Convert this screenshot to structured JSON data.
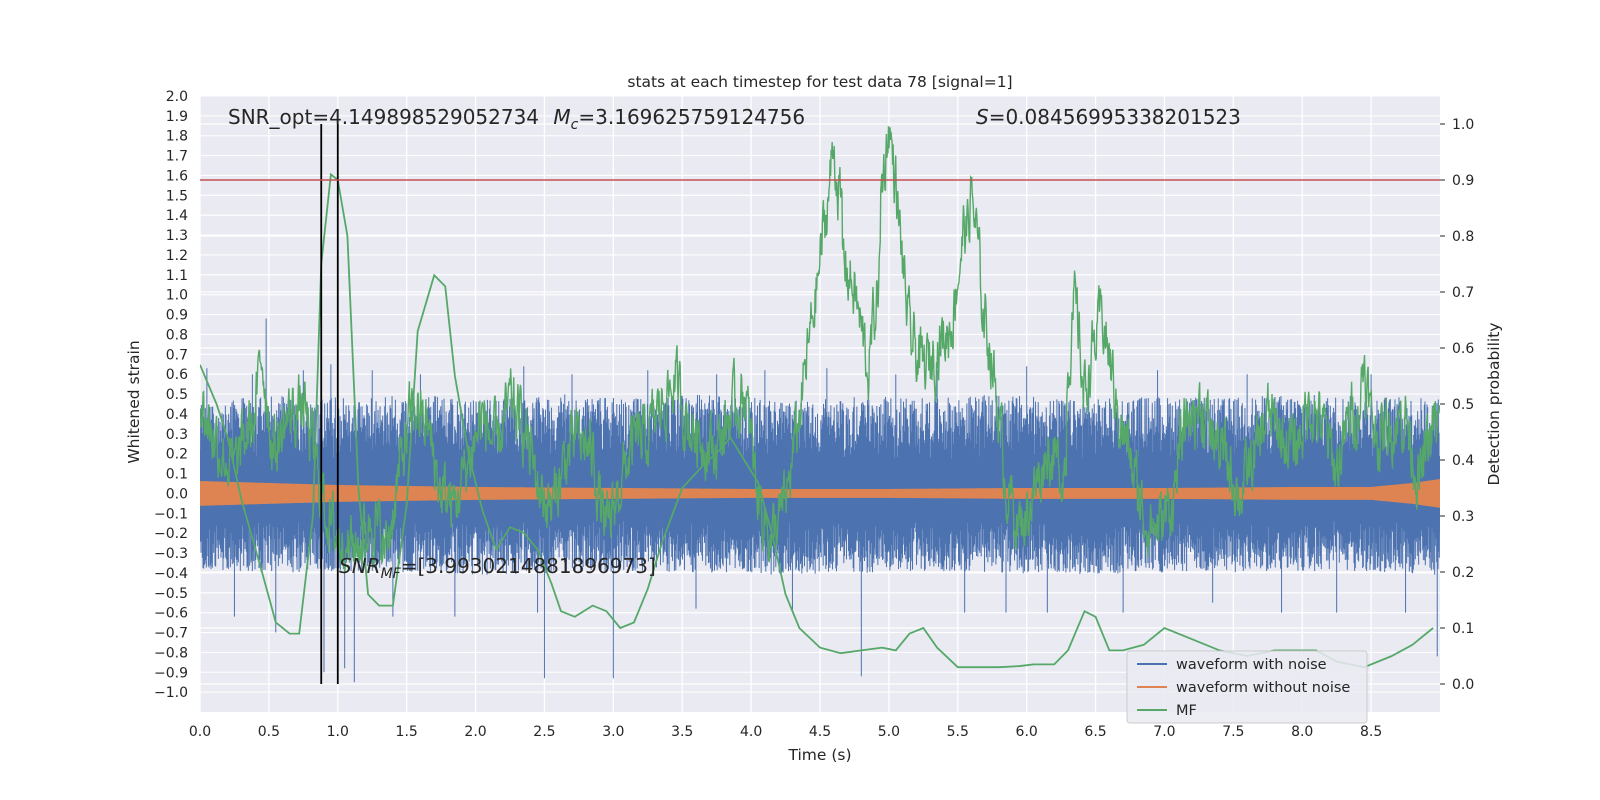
{
  "chart_data": {
    "type": "line",
    "title": "stats at each timestep for test data 78 [signal=1]",
    "xlabel": "Time (s)",
    "ylabel_left": "Whitened strain",
    "ylabel_right": "Detection probability",
    "xlim": [
      0,
      9
    ],
    "xticks": [
      0.0,
      0.5,
      1.0,
      1.5,
      2.0,
      2.5,
      3.0,
      3.5,
      4.0,
      4.5,
      5.0,
      5.5,
      6.0,
      6.5,
      7.0,
      7.5,
      8.0,
      8.5
    ],
    "xtick_labels": [
      "0.0",
      "0.5",
      "1.0",
      "1.5",
      "2.0",
      "2.5",
      "3.0",
      "3.5",
      "4.0",
      "4.5",
      "5.0",
      "5.5",
      "6.0",
      "6.5",
      "7.0",
      "7.5",
      "8.0",
      "8.5"
    ],
    "ylim_left": [
      -1.1,
      2.0
    ],
    "yticks_left": [
      -1.0,
      -0.9,
      -0.8,
      -0.7,
      -0.6,
      -0.5,
      -0.4,
      -0.3,
      -0.2,
      -0.1,
      0.0,
      0.1,
      0.2,
      0.3,
      0.4,
      0.5,
      0.6,
      0.7,
      0.8,
      0.9,
      1.0,
      1.1,
      1.2,
      1.3,
      1.4,
      1.5,
      1.6,
      1.7,
      1.8,
      1.9,
      2.0
    ],
    "ytick_labels_left": [
      "−1.0",
      "−0.9",
      "−0.8",
      "−0.7",
      "−0.6",
      "−0.5",
      "−0.4",
      "−0.3",
      "−0.2",
      "−0.1",
      "0.0",
      "0.1",
      "0.2",
      "0.3",
      "0.4",
      "0.5",
      "0.6",
      "0.7",
      "0.8",
      "0.9",
      "1.0",
      "1.1",
      "1.2",
      "1.3",
      "1.4",
      "1.5",
      "1.6",
      "1.7",
      "1.8",
      "1.9",
      "2.0"
    ],
    "ylim_right": [
      -0.05,
      1.05
    ],
    "yticks_right": [
      0.0,
      0.1,
      0.2,
      0.3,
      0.4,
      0.5,
      0.6,
      0.7,
      0.8,
      0.9,
      1.0
    ],
    "ytick_labels_right": [
      "0.0",
      "0.1",
      "0.2",
      "0.3",
      "0.4",
      "0.5",
      "0.6",
      "0.7",
      "0.8",
      "0.9",
      "1.0"
    ],
    "grid": true,
    "legend_position": "lower-right",
    "annotations": {
      "snr_opt": "SNR_opt=4.149898529052734",
      "mc_symbol": "M",
      "mc_sub": "c",
      "mc_value": "=3.169625759124756",
      "s_symbol": "S",
      "s_value": "=0.08456995338201523",
      "snr_mf_symbol": "SNR",
      "snr_mf_sub": "MF",
      "snr_mf_value": "=[3.9930214881896973]"
    },
    "threshold": {
      "value": 0.9,
      "axis": "right",
      "color": "#c44e52"
    },
    "vlines": [
      0.88,
      1.0
    ],
    "series": [
      {
        "name": "waveform with noise",
        "axis": "left",
        "color": "#4c72b0",
        "kind": "noise-band",
        "upper_envelope": [
          0.45,
          0.5,
          0.48,
          0.5,
          0.47,
          0.5,
          0.48,
          0.5,
          0.47,
          0.49,
          0.48,
          0.5,
          0.47,
          0.49,
          0.48,
          0.5,
          0.49,
          0.48
        ],
        "lower_envelope": [
          -0.38,
          -0.4,
          -0.39,
          -0.4,
          -0.41,
          -0.4,
          -0.39,
          -0.4,
          -0.41,
          -0.4,
          -0.39,
          -0.4,
          -0.41,
          -0.4,
          -0.4,
          -0.39,
          -0.4,
          -0.41
        ],
        "spikes": [
          [
            0.05,
            0.63
          ],
          [
            0.25,
            -0.62
          ],
          [
            0.38,
            0.6
          ],
          [
            0.48,
            0.88
          ],
          [
            0.55,
            -0.7
          ],
          [
            0.75,
            0.62
          ],
          [
            0.9,
            -0.9
          ],
          [
            0.95,
            0.65
          ],
          [
            1.05,
            -0.88
          ],
          [
            1.12,
            -0.95
          ],
          [
            1.25,
            0.62
          ],
          [
            1.4,
            -0.62
          ],
          [
            1.6,
            0.6
          ],
          [
            1.85,
            -0.62
          ],
          [
            2.35,
            0.64
          ],
          [
            2.45,
            -0.6
          ],
          [
            2.5,
            -0.93
          ],
          [
            2.7,
            0.6
          ],
          [
            3.0,
            -0.93
          ],
          [
            3.25,
            0.62
          ],
          [
            3.6,
            -0.58
          ],
          [
            3.75,
            0.6
          ],
          [
            4.1,
            0.62
          ],
          [
            4.3,
            -0.6
          ],
          [
            4.55,
            0.63
          ],
          [
            4.8,
            -0.92
          ],
          [
            5.05,
            0.6
          ],
          [
            5.35,
            0.62
          ],
          [
            5.55,
            -0.6
          ],
          [
            5.85,
            -0.6
          ],
          [
            6.0,
            0.64
          ],
          [
            6.15,
            -0.6
          ],
          [
            6.45,
            0.6
          ],
          [
            6.7,
            -0.6
          ],
          [
            6.95,
            0.62
          ],
          [
            7.35,
            -0.55
          ],
          [
            7.6,
            0.6
          ],
          [
            7.85,
            -0.6
          ],
          [
            8.25,
            -0.6
          ],
          [
            8.5,
            0.6
          ],
          [
            8.75,
            -0.6
          ],
          [
            8.98,
            -0.82
          ]
        ]
      },
      {
        "name": "waveform without noise",
        "axis": "left",
        "color": "#dd8452",
        "kind": "band",
        "x": [
          0.0,
          0.5,
          1.0,
          2.0,
          3.0,
          4.0,
          5.0,
          6.0,
          7.0,
          8.0,
          8.5,
          8.8,
          9.0
        ],
        "half_width": [
          0.06,
          0.05,
          0.04,
          0.03,
          0.025,
          0.02,
          0.02,
          0.025,
          0.025,
          0.03,
          0.03,
          0.05,
          0.07
        ]
      },
      {
        "name": "MF",
        "axis": "right",
        "color": "#55a868",
        "kind": "line",
        "x": [
          0.0,
          0.12,
          0.2,
          0.3,
          0.45,
          0.55,
          0.65,
          0.72,
          0.82,
          0.88,
          0.95,
          1.0,
          1.07,
          1.15,
          1.22,
          1.3,
          1.4,
          1.5,
          1.58,
          1.7,
          1.78,
          1.85,
          1.95,
          2.05,
          2.15,
          2.25,
          2.35,
          2.45,
          2.55,
          2.62,
          2.72,
          2.85,
          2.95,
          3.05,
          3.15,
          3.25,
          3.35,
          3.5,
          3.65,
          3.78,
          3.85,
          3.95,
          4.05,
          4.15,
          4.25,
          4.35,
          4.5,
          4.65,
          4.8,
          4.95,
          5.05,
          5.15,
          5.25,
          5.35,
          5.5,
          5.65,
          5.8,
          5.95,
          6.05,
          6.2,
          6.3,
          6.42,
          6.5,
          6.6,
          6.7,
          6.85,
          7.0,
          7.2,
          7.4,
          7.6,
          7.8,
          7.95,
          8.1,
          8.25,
          8.45,
          8.65,
          8.8,
          8.95
        ],
        "y": [
          0.57,
          0.5,
          0.44,
          0.33,
          0.2,
          0.11,
          0.09,
          0.09,
          0.3,
          0.75,
          0.91,
          0.9,
          0.8,
          0.35,
          0.16,
          0.14,
          0.14,
          0.32,
          0.63,
          0.73,
          0.71,
          0.55,
          0.41,
          0.31,
          0.24,
          0.28,
          0.27,
          0.24,
          0.18,
          0.13,
          0.12,
          0.14,
          0.13,
          0.1,
          0.11,
          0.17,
          0.25,
          0.35,
          0.39,
          0.42,
          0.44,
          0.4,
          0.36,
          0.27,
          0.16,
          0.1,
          0.065,
          0.055,
          0.06,
          0.065,
          0.06,
          0.09,
          0.1,
          0.065,
          0.03,
          0.03,
          0.03,
          0.032,
          0.035,
          0.035,
          0.06,
          0.13,
          0.12,
          0.06,
          0.06,
          0.07,
          0.1,
          0.08,
          0.06,
          0.05,
          0.06,
          0.06,
          0.06,
          0.04,
          0.03,
          0.05,
          0.07,
          0.1
        ]
      },
      {
        "name": "detection probability",
        "axis": "right",
        "color": "#55a868",
        "kind": "noisy-line",
        "x": [
          0.0,
          0.15,
          0.25,
          0.35,
          0.45,
          0.55,
          0.65,
          0.75,
          0.85,
          0.95,
          1.05,
          1.15,
          1.25,
          1.35,
          1.45,
          1.55,
          1.65,
          1.75,
          1.85,
          1.95,
          2.05,
          2.15,
          2.25,
          2.35,
          2.45,
          2.55,
          2.65,
          2.75,
          2.85,
          2.95,
          3.05,
          3.15,
          3.25,
          3.35,
          3.45,
          3.55,
          3.65,
          3.75,
          3.85,
          3.95,
          4.05,
          4.15,
          4.25,
          4.35,
          4.45,
          4.55,
          4.65,
          4.75,
          4.85,
          4.95,
          5.05,
          5.15,
          5.25,
          5.35,
          5.45,
          5.55,
          5.65,
          5.75,
          5.85,
          5.95,
          6.05,
          6.15,
          6.25,
          6.35,
          6.45,
          6.55,
          6.65,
          6.75,
          6.85,
          6.95,
          7.05,
          7.15,
          7.25,
          7.35,
          7.45,
          7.55,
          7.65,
          7.75,
          7.85,
          7.95,
          8.05,
          8.15,
          8.25,
          8.35,
          8.45,
          8.55,
          8.65,
          8.75,
          8.85,
          8.95
        ],
        "y": [
          0.5,
          0.42,
          0.38,
          0.45,
          0.5,
          0.42,
          0.48,
          0.5,
          0.38,
          0.28,
          0.25,
          0.25,
          0.3,
          0.24,
          0.38,
          0.5,
          0.46,
          0.34,
          0.32,
          0.4,
          0.48,
          0.42,
          0.5,
          0.46,
          0.36,
          0.31,
          0.4,
          0.44,
          0.41,
          0.26,
          0.36,
          0.43,
          0.44,
          0.5,
          0.54,
          0.46,
          0.44,
          0.42,
          0.48,
          0.52,
          0.34,
          0.26,
          0.32,
          0.48,
          0.66,
          0.85,
          0.78,
          0.7,
          0.56,
          0.78,
          0.88,
          0.62,
          0.56,
          0.6,
          0.64,
          0.82,
          0.72,
          0.58,
          0.36,
          0.28,
          0.34,
          0.42,
          0.38,
          0.44,
          0.56,
          0.66,
          0.5,
          0.4,
          0.3,
          0.28,
          0.32,
          0.46,
          0.5,
          0.44,
          0.4,
          0.34,
          0.4,
          0.48,
          0.44,
          0.42,
          0.5,
          0.46,
          0.38,
          0.48,
          0.5,
          0.44,
          0.46,
          0.48,
          0.36,
          0.46
        ],
        "peaks": [
          [
            4.6,
            0.96
          ],
          [
            5.0,
            1.0
          ],
          [
            5.6,
            0.88
          ],
          [
            8.45,
            0.58
          ],
          [
            0.45,
            0.59
          ],
          [
            6.35,
            0.68
          ]
        ]
      }
    ],
    "legend": [
      "waveform with noise",
      "waveform without noise",
      "MF"
    ]
  }
}
